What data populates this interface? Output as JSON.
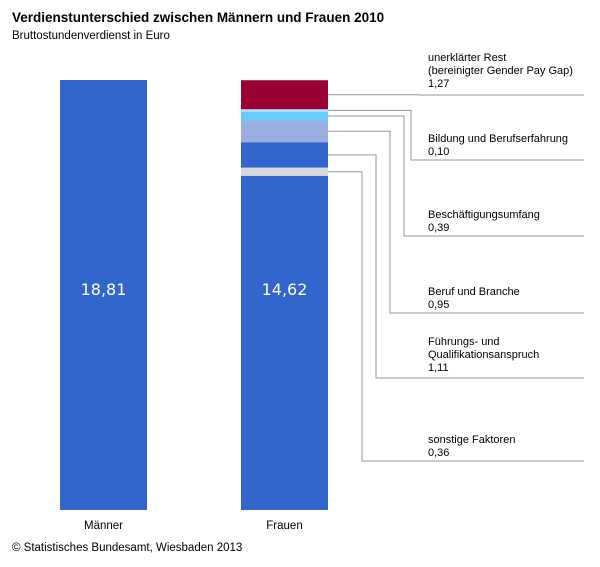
{
  "title": "Verdienstunterschied zwischen Männern und Frauen 2010",
  "subtitle": "Bruttostundenverdienst in Euro",
  "source": "© Statistisches Bundesamt, Wiesbaden 2013",
  "colors": {
    "base": "#3366cc",
    "unexplained": "#990033",
    "education": "#bfe3f5",
    "employment": "#66ccff",
    "occupation": "#99aee0",
    "leadership": "#3366cc",
    "other": "#d9d9d9",
    "connector": "#999999"
  },
  "chart_data": {
    "type": "bar",
    "title": "Verdienstunterschied zwischen Männern und Frauen 2010",
    "subtitle": "Bruttostundenverdienst in Euro",
    "categories": [
      "Männer",
      "Frauen"
    ],
    "men_value": 18.81,
    "women_value": 14.62,
    "men_value_label": "18,81",
    "women_value_label": "14,62",
    "components_order_top_to_bottom": [
      "unexplained",
      "education",
      "employment",
      "occupation",
      "leadership",
      "other"
    ],
    "components": [
      {
        "key": "unexplained",
        "label_lines": [
          "unerklärter Rest",
          "(bereinigter Gender Pay Gap)"
        ],
        "value": 1.27,
        "value_label": "1,27"
      },
      {
        "key": "education",
        "label_lines": [
          "Bildung und Berufserfahrung"
        ],
        "value": 0.1,
        "value_label": "0,10"
      },
      {
        "key": "employment",
        "label_lines": [
          "Beschäftigungsumfang"
        ],
        "value": 0.39,
        "value_label": "0,39"
      },
      {
        "key": "occupation",
        "label_lines": [
          "Beruf und Branche"
        ],
        "value": 0.95,
        "value_label": "0,95"
      },
      {
        "key": "leadership",
        "label_lines": [
          "Führungs- und",
          "Qualifikationsanspruch"
        ],
        "value": 1.11,
        "value_label": "1,11"
      },
      {
        "key": "other",
        "label_lines": [
          "sonstige Faktoren"
        ],
        "value": 0.36,
        "value_label": "0,36"
      }
    ]
  }
}
